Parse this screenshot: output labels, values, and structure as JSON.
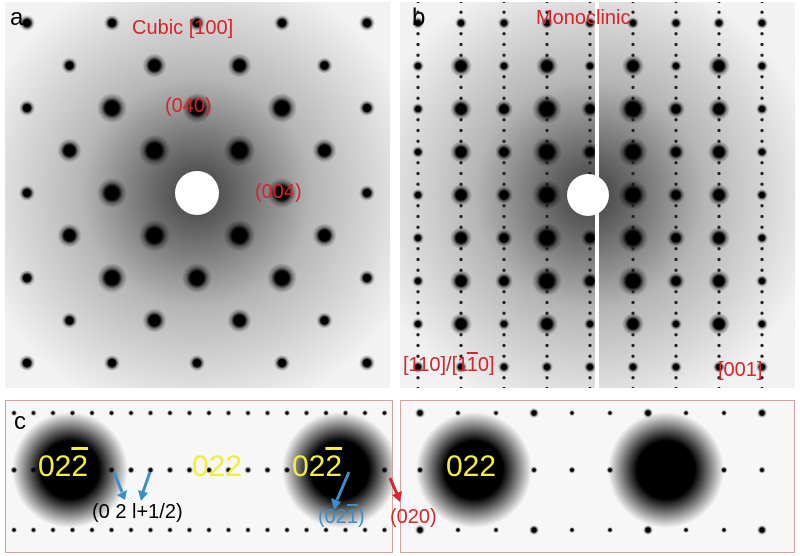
{
  "panels": {
    "a": {
      "letter": "a",
      "title": "Cubic [100]",
      "labels": [
        "(040)",
        "(004)"
      ]
    },
    "b": {
      "letter": "b",
      "title": "Monoclinic",
      "zone_left_pre": "[1",
      "zone_left_mid": "1",
      "zone_left_rest": "0]/[1",
      "zone_left_bar": "1",
      "zone_left_end": "0]",
      "zone_right": "[001]"
    },
    "c": {
      "letter": "c",
      "left": {
        "spot1_pre": "02",
        "spot1_bar": "2",
        "spot2": "022",
        "annotation": "(0 2 l+1/2)"
      },
      "right": {
        "spot1_pre": "02",
        "spot1_bar": "2",
        "spot2": "022",
        "annotation_blue_pre": "(02",
        "annotation_blue_bar": "1",
        "annotation_blue_end": ")",
        "annotation_red": "(020)"
      }
    }
  },
  "colors": {
    "label_red": "#d8232a",
    "label_yellow": "#f2ee3a",
    "arrow_blue": "#3a8fc8",
    "frame": "#d9a0a0"
  }
}
